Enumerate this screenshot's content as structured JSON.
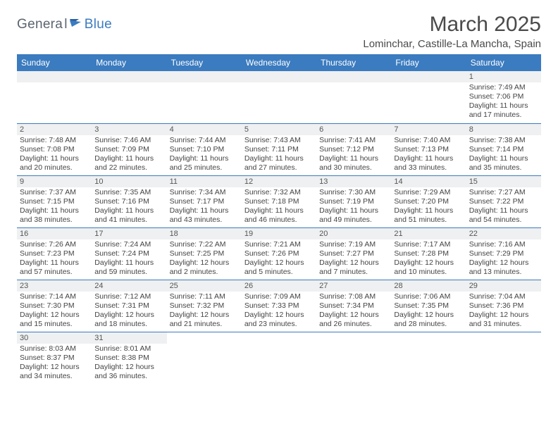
{
  "logo": {
    "general": "Genera",
    "l": "l",
    "blue": "Blue"
  },
  "title": "March 2025",
  "location": "Lominchar, Castille-La Mancha, Spain",
  "colors": {
    "header_bg": "#3b7bbf",
    "header_fg": "#ffffff",
    "daynum_bg": "#eff0f1",
    "border": "#3b7bbf",
    "text": "#333333",
    "logo_gray": "#5a6570",
    "logo_blue": "#3b7bbf"
  },
  "weekdays": [
    "Sunday",
    "Monday",
    "Tuesday",
    "Wednesday",
    "Thursday",
    "Friday",
    "Saturday"
  ],
  "weeks": [
    [
      null,
      null,
      null,
      null,
      null,
      null,
      {
        "n": "1",
        "sr": "Sunrise: 7:49 AM",
        "ss": "Sunset: 7:06 PM",
        "d1": "Daylight: 11 hours",
        "d2": "and 17 minutes."
      }
    ],
    [
      {
        "n": "2",
        "sr": "Sunrise: 7:48 AM",
        "ss": "Sunset: 7:08 PM",
        "d1": "Daylight: 11 hours",
        "d2": "and 20 minutes."
      },
      {
        "n": "3",
        "sr": "Sunrise: 7:46 AM",
        "ss": "Sunset: 7:09 PM",
        "d1": "Daylight: 11 hours",
        "d2": "and 22 minutes."
      },
      {
        "n": "4",
        "sr": "Sunrise: 7:44 AM",
        "ss": "Sunset: 7:10 PM",
        "d1": "Daylight: 11 hours",
        "d2": "and 25 minutes."
      },
      {
        "n": "5",
        "sr": "Sunrise: 7:43 AM",
        "ss": "Sunset: 7:11 PM",
        "d1": "Daylight: 11 hours",
        "d2": "and 27 minutes."
      },
      {
        "n": "6",
        "sr": "Sunrise: 7:41 AM",
        "ss": "Sunset: 7:12 PM",
        "d1": "Daylight: 11 hours",
        "d2": "and 30 minutes."
      },
      {
        "n": "7",
        "sr": "Sunrise: 7:40 AM",
        "ss": "Sunset: 7:13 PM",
        "d1": "Daylight: 11 hours",
        "d2": "and 33 minutes."
      },
      {
        "n": "8",
        "sr": "Sunrise: 7:38 AM",
        "ss": "Sunset: 7:14 PM",
        "d1": "Daylight: 11 hours",
        "d2": "and 35 minutes."
      }
    ],
    [
      {
        "n": "9",
        "sr": "Sunrise: 7:37 AM",
        "ss": "Sunset: 7:15 PM",
        "d1": "Daylight: 11 hours",
        "d2": "and 38 minutes."
      },
      {
        "n": "10",
        "sr": "Sunrise: 7:35 AM",
        "ss": "Sunset: 7:16 PM",
        "d1": "Daylight: 11 hours",
        "d2": "and 41 minutes."
      },
      {
        "n": "11",
        "sr": "Sunrise: 7:34 AM",
        "ss": "Sunset: 7:17 PM",
        "d1": "Daylight: 11 hours",
        "d2": "and 43 minutes."
      },
      {
        "n": "12",
        "sr": "Sunrise: 7:32 AM",
        "ss": "Sunset: 7:18 PM",
        "d1": "Daylight: 11 hours",
        "d2": "and 46 minutes."
      },
      {
        "n": "13",
        "sr": "Sunrise: 7:30 AM",
        "ss": "Sunset: 7:19 PM",
        "d1": "Daylight: 11 hours",
        "d2": "and 49 minutes."
      },
      {
        "n": "14",
        "sr": "Sunrise: 7:29 AM",
        "ss": "Sunset: 7:20 PM",
        "d1": "Daylight: 11 hours",
        "d2": "and 51 minutes."
      },
      {
        "n": "15",
        "sr": "Sunrise: 7:27 AM",
        "ss": "Sunset: 7:22 PM",
        "d1": "Daylight: 11 hours",
        "d2": "and 54 minutes."
      }
    ],
    [
      {
        "n": "16",
        "sr": "Sunrise: 7:26 AM",
        "ss": "Sunset: 7:23 PM",
        "d1": "Daylight: 11 hours",
        "d2": "and 57 minutes."
      },
      {
        "n": "17",
        "sr": "Sunrise: 7:24 AM",
        "ss": "Sunset: 7:24 PM",
        "d1": "Daylight: 11 hours",
        "d2": "and 59 minutes."
      },
      {
        "n": "18",
        "sr": "Sunrise: 7:22 AM",
        "ss": "Sunset: 7:25 PM",
        "d1": "Daylight: 12 hours",
        "d2": "and 2 minutes."
      },
      {
        "n": "19",
        "sr": "Sunrise: 7:21 AM",
        "ss": "Sunset: 7:26 PM",
        "d1": "Daylight: 12 hours",
        "d2": "and 5 minutes."
      },
      {
        "n": "20",
        "sr": "Sunrise: 7:19 AM",
        "ss": "Sunset: 7:27 PM",
        "d1": "Daylight: 12 hours",
        "d2": "and 7 minutes."
      },
      {
        "n": "21",
        "sr": "Sunrise: 7:17 AM",
        "ss": "Sunset: 7:28 PM",
        "d1": "Daylight: 12 hours",
        "d2": "and 10 minutes."
      },
      {
        "n": "22",
        "sr": "Sunrise: 7:16 AM",
        "ss": "Sunset: 7:29 PM",
        "d1": "Daylight: 12 hours",
        "d2": "and 13 minutes."
      }
    ],
    [
      {
        "n": "23",
        "sr": "Sunrise: 7:14 AM",
        "ss": "Sunset: 7:30 PM",
        "d1": "Daylight: 12 hours",
        "d2": "and 15 minutes."
      },
      {
        "n": "24",
        "sr": "Sunrise: 7:12 AM",
        "ss": "Sunset: 7:31 PM",
        "d1": "Daylight: 12 hours",
        "d2": "and 18 minutes."
      },
      {
        "n": "25",
        "sr": "Sunrise: 7:11 AM",
        "ss": "Sunset: 7:32 PM",
        "d1": "Daylight: 12 hours",
        "d2": "and 21 minutes."
      },
      {
        "n": "26",
        "sr": "Sunrise: 7:09 AM",
        "ss": "Sunset: 7:33 PM",
        "d1": "Daylight: 12 hours",
        "d2": "and 23 minutes."
      },
      {
        "n": "27",
        "sr": "Sunrise: 7:08 AM",
        "ss": "Sunset: 7:34 PM",
        "d1": "Daylight: 12 hours",
        "d2": "and 26 minutes."
      },
      {
        "n": "28",
        "sr": "Sunrise: 7:06 AM",
        "ss": "Sunset: 7:35 PM",
        "d1": "Daylight: 12 hours",
        "d2": "and 28 minutes."
      },
      {
        "n": "29",
        "sr": "Sunrise: 7:04 AM",
        "ss": "Sunset: 7:36 PM",
        "d1": "Daylight: 12 hours",
        "d2": "and 31 minutes."
      }
    ],
    [
      {
        "n": "30",
        "sr": "Sunrise: 8:03 AM",
        "ss": "Sunset: 8:37 PM",
        "d1": "Daylight: 12 hours",
        "d2": "and 34 minutes."
      },
      {
        "n": "31",
        "sr": "Sunrise: 8:01 AM",
        "ss": "Sunset: 8:38 PM",
        "d1": "Daylight: 12 hours",
        "d2": "and 36 minutes."
      },
      null,
      null,
      null,
      null,
      null
    ]
  ]
}
